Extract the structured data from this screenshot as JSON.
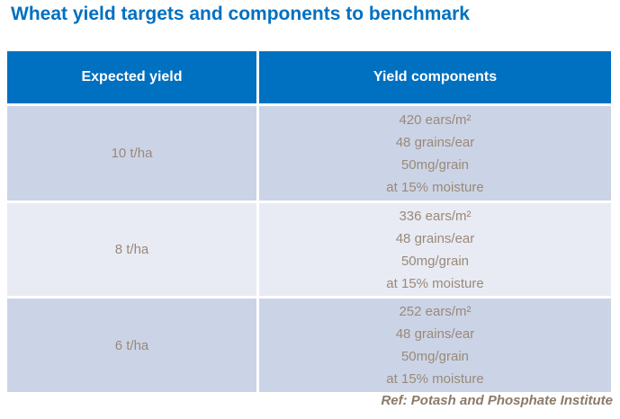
{
  "title": "Wheat yield targets and components to benchmark",
  "table": {
    "headers": [
      "Expected yield",
      "Yield components"
    ],
    "rows": [
      {
        "yield": "10 t/ha",
        "components": [
          "420 ears/m²",
          "48 grains/ear",
          "50mg/grain",
          "at 15% moisture"
        ]
      },
      {
        "yield": "8 t/ha",
        "components": [
          "336 ears/m²",
          "48 grains/ear",
          "50mg/grain",
          "at 15% moisture"
        ]
      },
      {
        "yield": "6 t/ha",
        "components": [
          "252 ears/m²",
          "48 grains/ear",
          "50mg/grain",
          "at 15% moisture"
        ]
      }
    ]
  },
  "reference": "Ref: Potash and Phosphate Institute",
  "colors": {
    "accent-blue": "#0070C0",
    "header-bg": "#0070C0",
    "header-text": "#FFFFFF",
    "row-bg-dark": "#CBD4E6",
    "row-bg-light": "#E8EBF4",
    "cell-text": "#9A8979",
    "ref-text": "#8A7A69",
    "page-bg": "#FFFFFF"
  }
}
